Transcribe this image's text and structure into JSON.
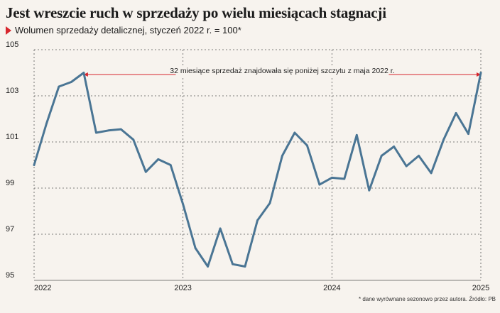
{
  "title": "Jest wreszcie ruch w sprzedaży po wielu miesiącach stagnacji",
  "subtitle": "Wolumen sprzedaży detalicznej, styczeń 2022 r.  = 100*",
  "footnote": "* dane wyrównane sezonowo przez autora. Źródło: PB",
  "colors": {
    "line": "#4a7594",
    "accent": "#d7262d",
    "grid": "#555555",
    "background": "#f7f3ee"
  },
  "chart_data": {
    "type": "line",
    "x": [
      "2022-01",
      "2022-02",
      "2022-03",
      "2022-04",
      "2022-05",
      "2022-06",
      "2022-07",
      "2022-08",
      "2022-09",
      "2022-10",
      "2022-11",
      "2022-12",
      "2023-01",
      "2023-02",
      "2023-03",
      "2023-04",
      "2023-05",
      "2023-06",
      "2023-07",
      "2023-08",
      "2023-09",
      "2023-10",
      "2023-11",
      "2023-12",
      "2024-01",
      "2024-02",
      "2024-03",
      "2024-04",
      "2024-05",
      "2024-06",
      "2024-07",
      "2024-08",
      "2024-09",
      "2024-10",
      "2024-11",
      "2024-12",
      "2025-01"
    ],
    "series": [
      {
        "values": [
          100.0,
          101.8,
          103.4,
          103.6,
          104.0,
          101.4,
          101.5,
          101.55,
          101.1,
          99.7,
          100.25,
          100.0,
          98.3,
          96.4,
          95.6,
          97.25,
          95.7,
          95.6,
          97.6,
          98.35,
          100.4,
          101.4,
          100.85,
          99.15,
          99.45,
          99.4,
          101.3,
          98.9,
          100.4,
          100.8,
          99.95,
          100.4,
          99.65,
          101.1,
          102.25,
          101.35,
          104.0
        ]
      }
    ],
    "ylim": [
      95,
      105
    ],
    "yticks": [
      95,
      97,
      99,
      101,
      103,
      105
    ],
    "xtick_labels": [
      "2022",
      "2023",
      "2024",
      "2025"
    ],
    "grid": true,
    "annotation": "32 miesiące sprzedaż znajdowała się poniżej szczytu z maja 2022 r.",
    "annotation_span": [
      "2022-05",
      "2025-01"
    ]
  }
}
